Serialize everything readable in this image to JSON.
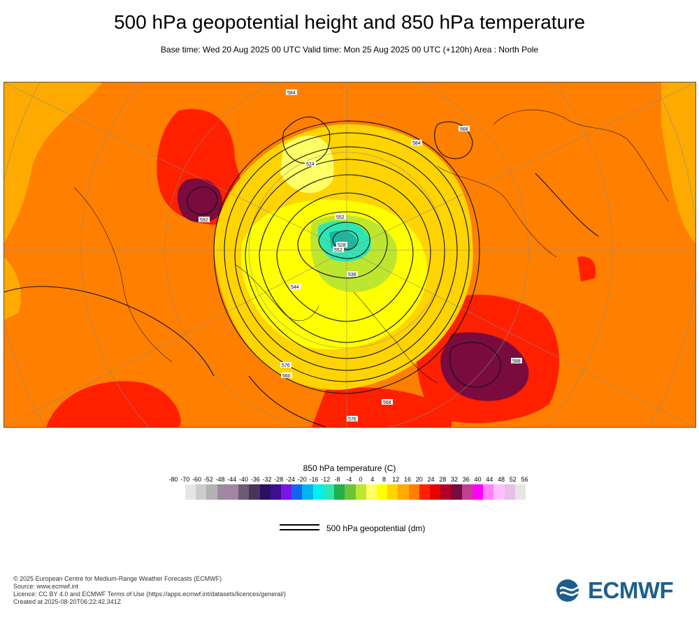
{
  "title": "500 hPa geopotential height and 850 hPa temperature",
  "subtitle": "Base time: Wed 20 Aug 2025 00 UTC Valid time: Mon 25 Aug 2025 00 UTC (+120h) Area : North Pole",
  "map": {
    "temperature_field": "850 hPa temperature shading",
    "contour_labels": [
      "584",
      "552",
      "528",
      "576",
      "560",
      "568",
      "592",
      "584",
      "588",
      "524",
      "536",
      "544",
      "552",
      "576",
      "568"
    ]
  },
  "legend": {
    "title": "850 hPa temperature (C)",
    "ticks": [
      "-80",
      "-70",
      "-60",
      "-52",
      "-48",
      "-44",
      "-40",
      "-36",
      "-32",
      "-28",
      "-24",
      "-20",
      "-16",
      "-12",
      "-8",
      "-4",
      "0",
      "4",
      "8",
      "12",
      "16",
      "20",
      "24",
      "28",
      "32",
      "36",
      "40",
      "44",
      "48",
      "52",
      "56"
    ],
    "colors": [
      "#e6e6e6",
      "#cccccc",
      "#b3b3b3",
      "#9e8aa0",
      "#a383a6",
      "#6e5a73",
      "#473559",
      "#2a1060",
      "#3c0f8c",
      "#7b16e6",
      "#1663f0",
      "#00b4f0",
      "#00f0f0",
      "#2ee6b4",
      "#22b04a",
      "#6cc23a",
      "#bde62e",
      "#ffff66",
      "#ffff00",
      "#ffd400",
      "#ffaa00",
      "#ff7f00",
      "#ff2000",
      "#e60000",
      "#b40028",
      "#7a0b3e",
      "#c0408e",
      "#ff00ff",
      "#ff80ff",
      "#ffc0ff",
      "#e6c0e6",
      "#e6e6e6"
    ],
    "contour_label": "500 hPa geopotential (dm)"
  },
  "credits": {
    "line1": "© 2025 European Centre for Medium-Range Weather Forecasts (ECMWF)",
    "line2": "Source: www.ecmwf.int",
    "line3": "Licence: CC BY 4.0 and ECMWF Terms of Use (https://apps.ecmwf.int/datasets/licences/general/)",
    "line4": "Created at 2025-08-20T06:22:42.341Z"
  },
  "logo": {
    "text": "ECMWF",
    "color": "#1d5f8c"
  }
}
